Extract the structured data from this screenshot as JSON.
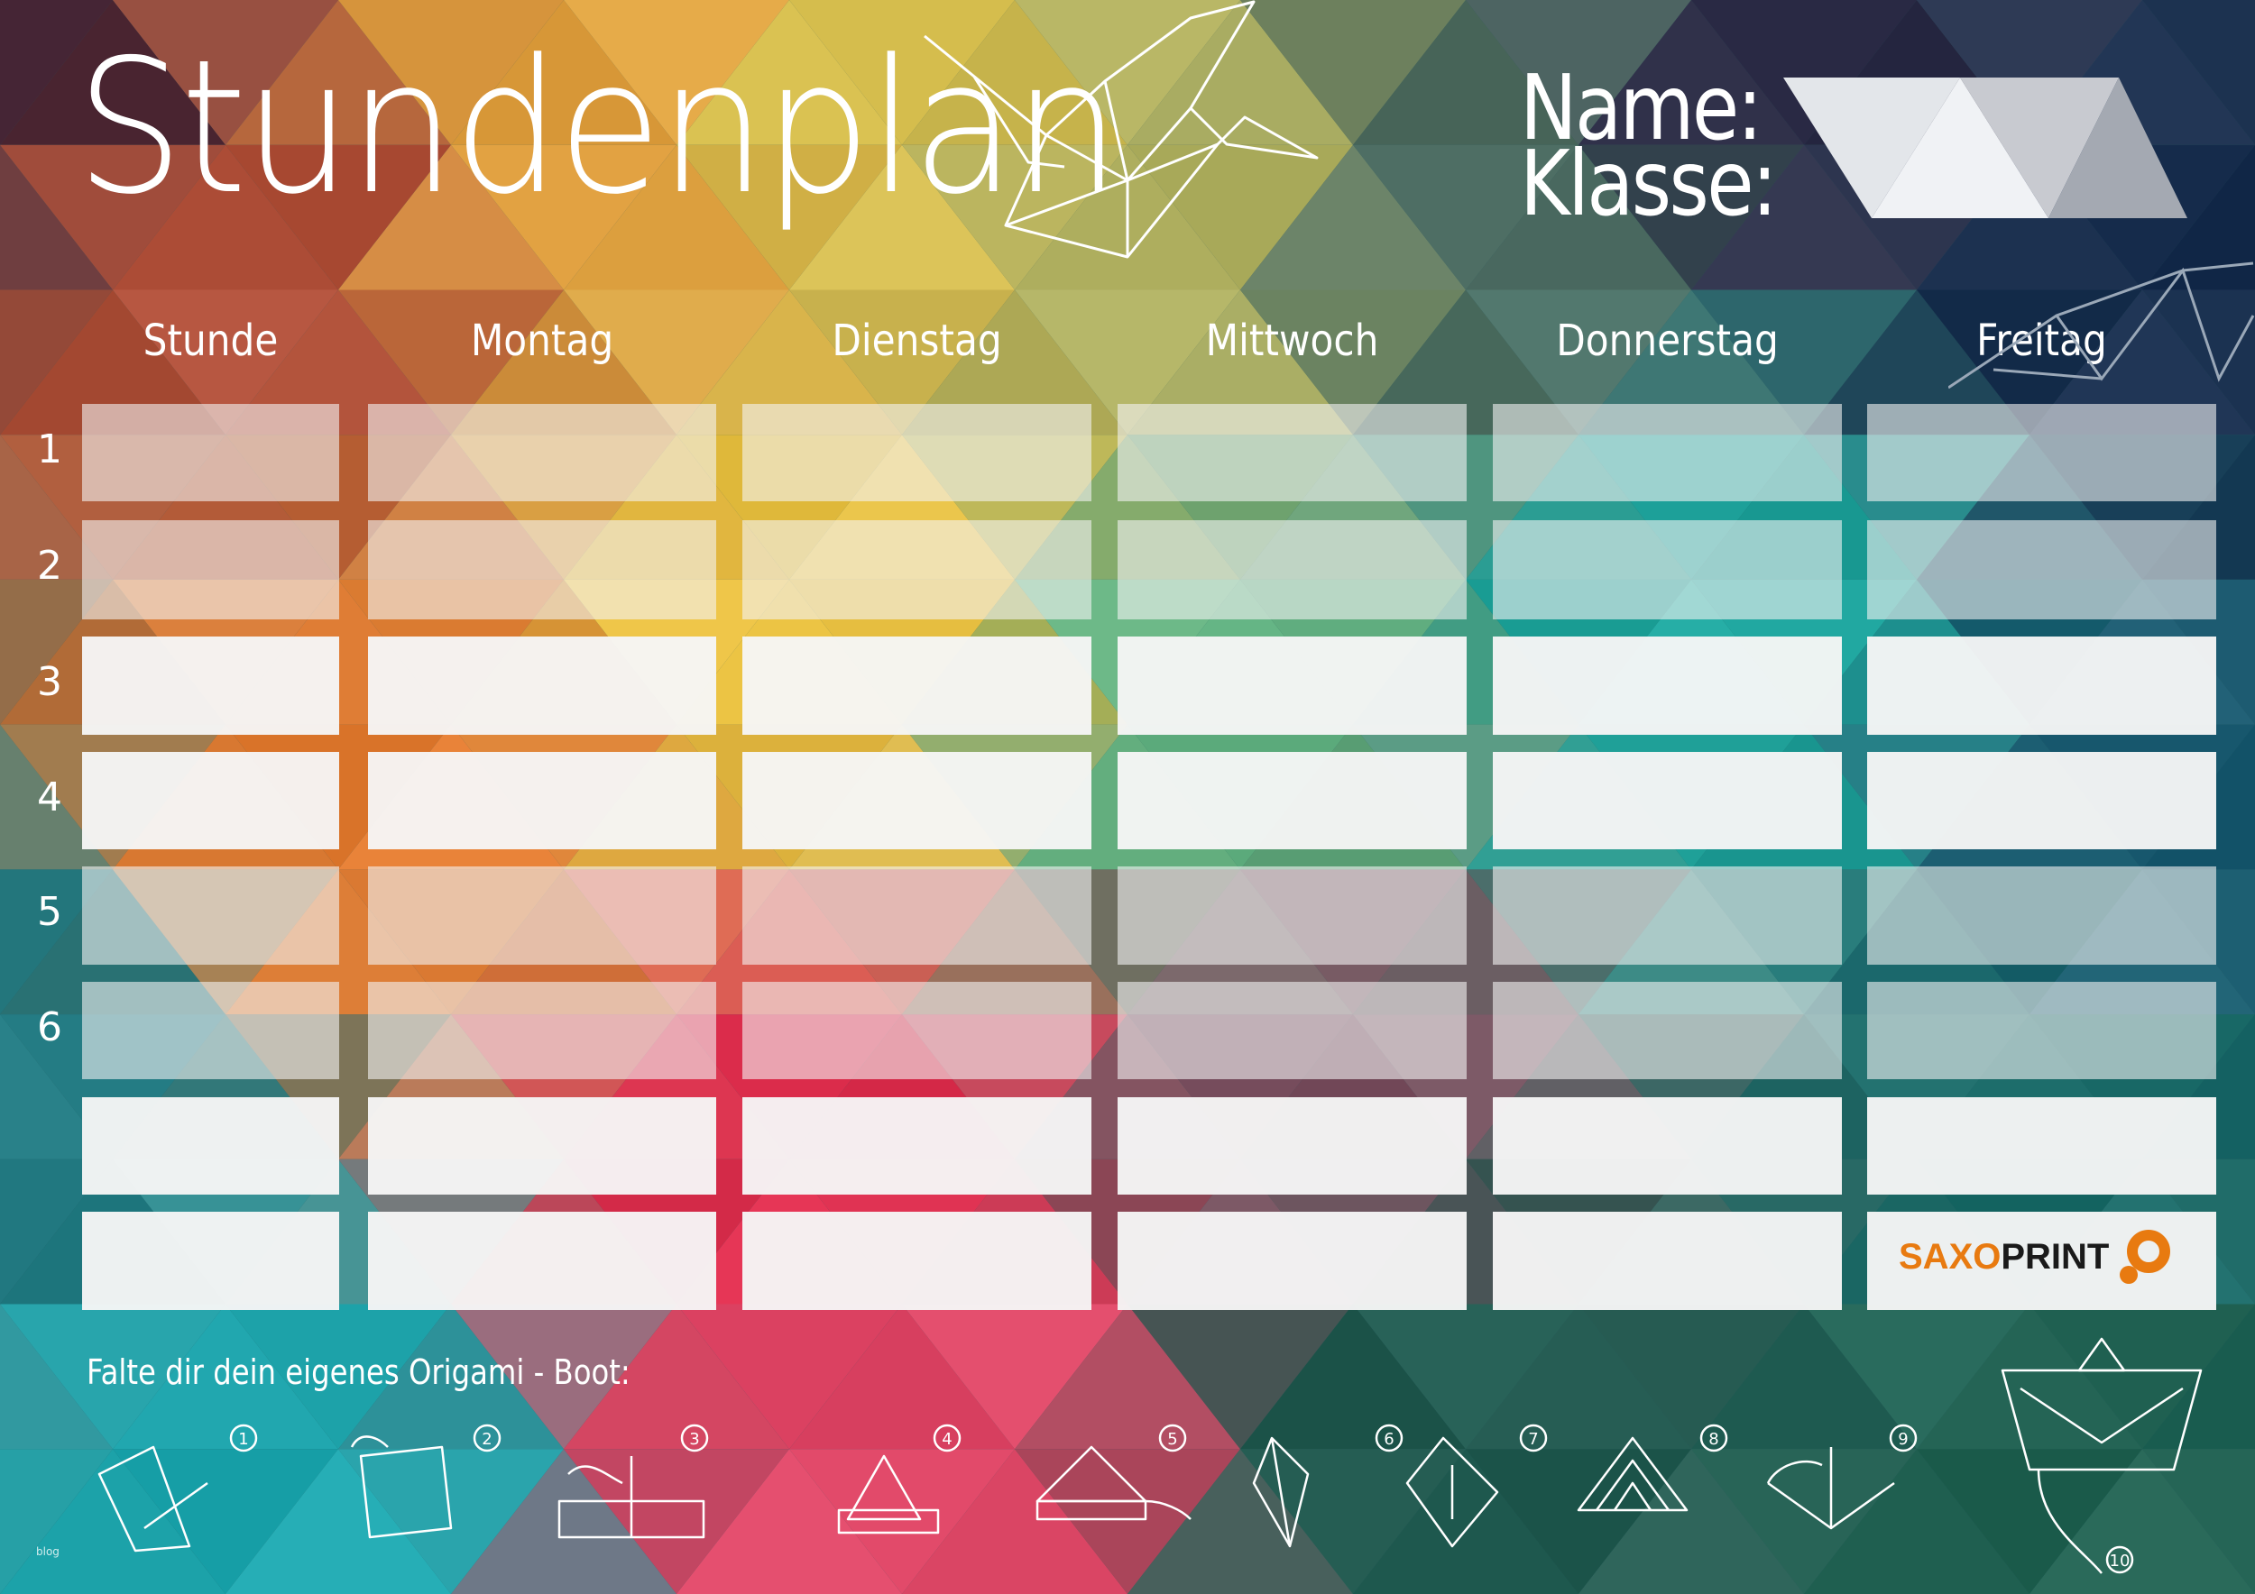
{
  "header": {
    "title": "Stundenplan",
    "name_label": "Name:",
    "class_label": "Klasse:"
  },
  "timetable": {
    "columns": [
      "Stunde",
      "Montag",
      "Dienstag",
      "Mittwoch",
      "Donnerstag",
      "Freitag"
    ],
    "row_numbers": [
      "1",
      "2",
      "3",
      "4",
      "5",
      "6",
      "",
      ""
    ]
  },
  "footer": {
    "instructions": "Falte dir dein eigenes Origami - Boot:",
    "steps": [
      "1",
      "2",
      "3",
      "4",
      "5",
      "6",
      "7",
      "8",
      "9",
      "10"
    ],
    "small_text": "blog"
  },
  "logo": {
    "part1": "SAXO",
    "part2": "PRINT",
    "brand_color": "#e87a10"
  },
  "colors": {
    "cell_light": "#f4f4f4",
    "text": "#ffffff"
  },
  "icons": [
    "origami-crane-icon",
    "origami-bird-icon",
    "origami-folding-step-icon",
    "saxoprint-logo-icon"
  ]
}
